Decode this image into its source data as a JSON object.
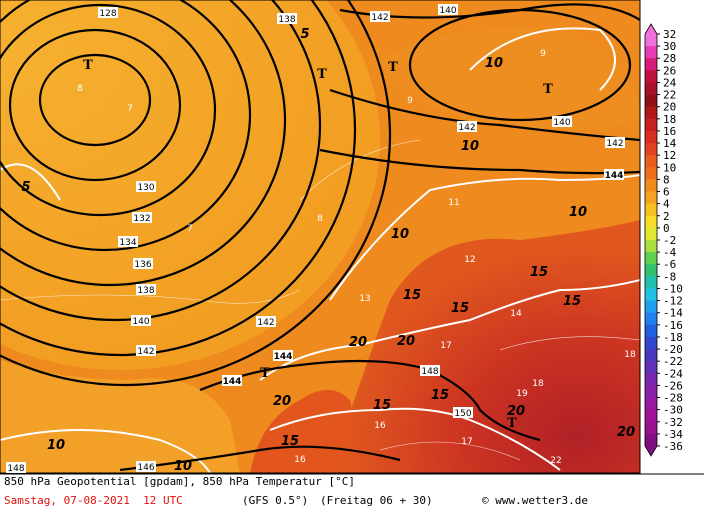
{
  "map_labels": [
    "128",
    "T",
    "T",
    "T",
    "T",
    "142",
    "140",
    "138",
    "10",
    "10",
    "10",
    "10",
    "10",
    "10",
    "142",
    "142",
    "144",
    "140",
    "130",
    "132",
    "134",
    "136",
    "138",
    "140",
    "142",
    "142",
    "144",
    "144",
    "146",
    "148",
    "148",
    "150",
    "15",
    "15",
    "15",
    "15",
    "15",
    "15",
    "15",
    "20",
    "20",
    "20",
    "20",
    "20",
    "T",
    "T",
    "5",
    "5",
    "13",
    "11",
    "12",
    "14",
    "17",
    "18",
    "19",
    "22",
    "17",
    "7",
    "8",
    "9",
    "7",
    "8",
    "9",
    "16",
    "16",
    "18"
  ],
  "legend": {
    "ticks": [
      32,
      30,
      28,
      26,
      24,
      22,
      20,
      18,
      16,
      14,
      12,
      10,
      8,
      6,
      4,
      2,
      0,
      -2,
      -4,
      -6,
      -8,
      -10,
      -12,
      -14,
      -16,
      -18,
      -20,
      -22,
      -24,
      -26,
      -28,
      -30,
      -32,
      -34,
      -36
    ],
    "colors": [
      "#f070e0",
      "#e83cb4",
      "#d81a78",
      "#c0103c",
      "#a8102a",
      "#901018",
      "#b01818",
      "#c82020",
      "#d83020",
      "#e04420",
      "#e85c1c",
      "#ee701c",
      "#f28a1c",
      "#f6a420",
      "#f8c020",
      "#f8dc28",
      "#e0e830",
      "#a8e040",
      "#60d050",
      "#30c070",
      "#20c0b0",
      "#20c0e0",
      "#20a0f0",
      "#2080f0",
      "#2060e0",
      "#3048d0",
      "#4838c0",
      "#6030b8",
      "#7828b0",
      "#8820a8",
      "#9818a0",
      "#a01098",
      "#981090",
      "#801080"
    ]
  },
  "footer": {
    "line1": "850 hPa Geopotential [gpdam], 850 hPa Temperatur [°C]",
    "date": "Samstag, 07-08-2021  12 UTC",
    "model": "(GFS 0.5°)",
    "run": "(Freitag 06 + 30)",
    "copyright": "© www.wetter3.de"
  }
}
